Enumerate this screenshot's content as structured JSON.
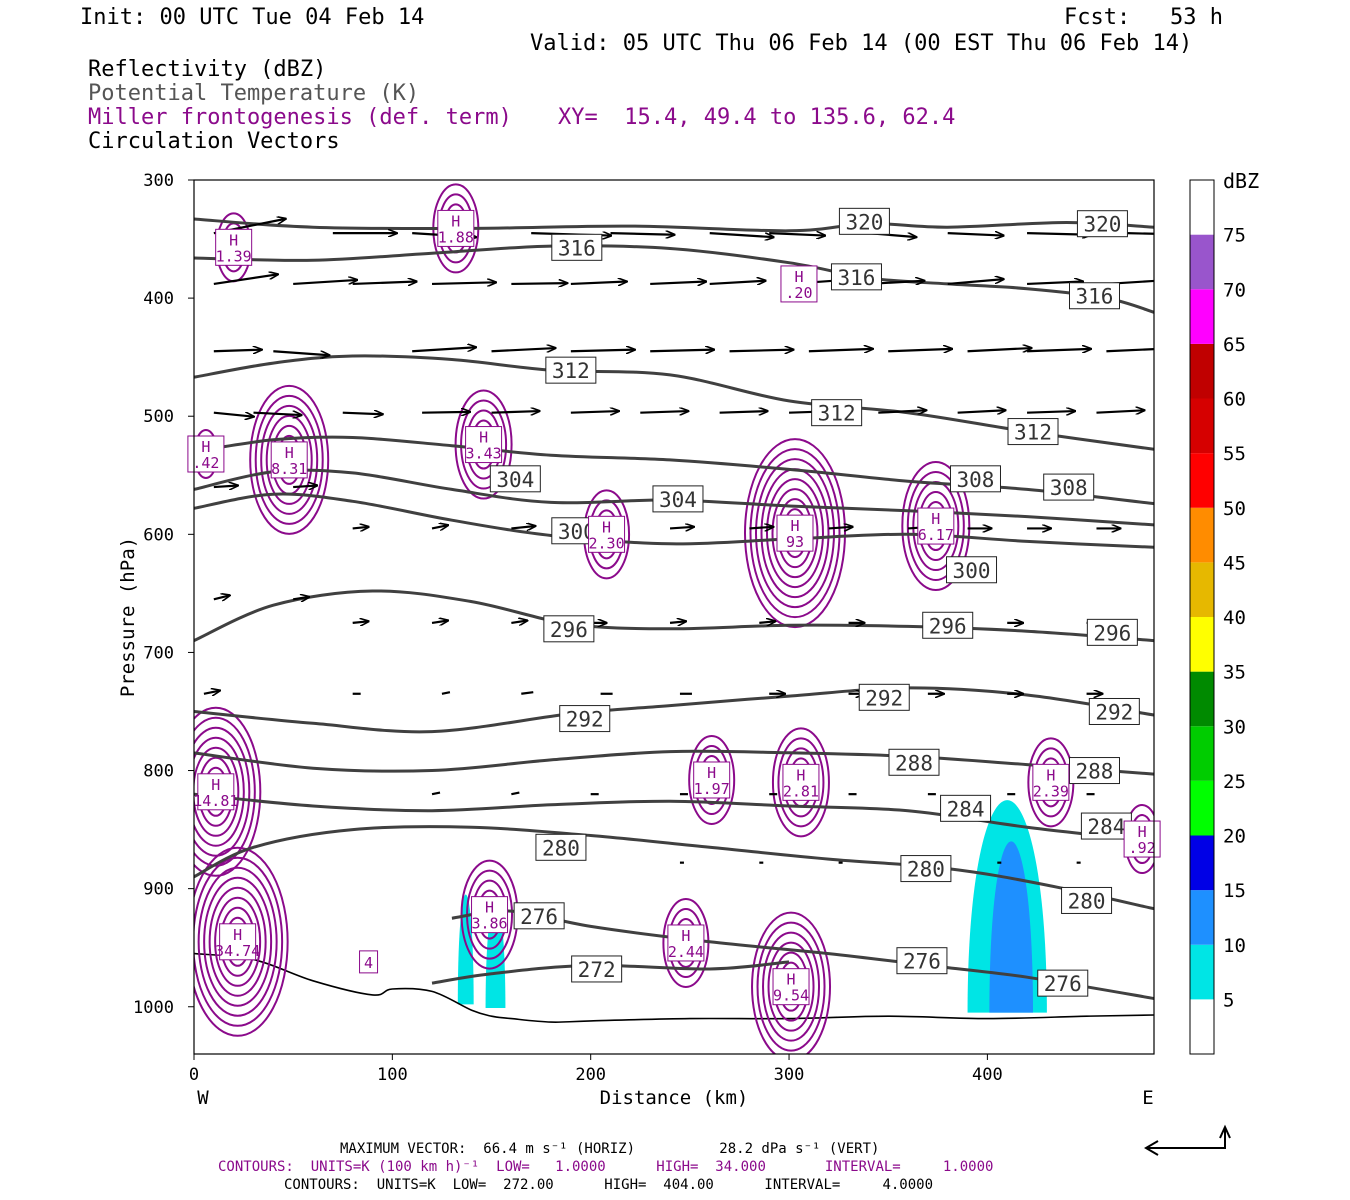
{
  "header": {
    "init": "Init: 00 UTC Tue 04 Feb 14",
    "fcst": "Fcst:   53 h",
    "valid": "Valid: 05 UTC Thu 06 Feb 14 (00 EST Thu 06 Feb 14)",
    "field1": "Reflectivity (dBZ)",
    "field2": "Potential Temperature (K)",
    "field3": "Miller frontogenesis (def. term)",
    "xy": "XY=  15.4, 49.4 to 135.6, 62.4",
    "field4": "Circulation Vectors"
  },
  "colors": {
    "theta": "#404040",
    "fronto": "#8b0a8b",
    "vector": "#000000"
  },
  "chart_data": {
    "type": "cross-section",
    "xlabel": "Distance (km)",
    "ylabel": "Pressure (hPa)",
    "xlim": [
      0,
      484
    ],
    "ylim": [
      1040,
      300
    ],
    "xticks": [
      0,
      100,
      200,
      300,
      400
    ],
    "yticks": [
      300,
      400,
      500,
      600,
      700,
      800,
      900,
      1000
    ],
    "x_end_labels": {
      "left": "W",
      "right": "E"
    },
    "colorbar": {
      "units": "dBZ",
      "levels": [
        5,
        10,
        15,
        20,
        25,
        30,
        35,
        40,
        45,
        50,
        55,
        60,
        65,
        70,
        75
      ],
      "colors": [
        "#ffffff",
        "#00e5e5",
        "#1e90ff",
        "#0000e6",
        "#00ff00",
        "#00cc00",
        "#008a00",
        "#ffff00",
        "#e6b800",
        "#ff8c00",
        "#ff0000",
        "#d60000",
        "#c00000",
        "#ff00ff",
        "#9955cc",
        "#ffffff"
      ]
    },
    "reflectivity_cells": [
      {
        "x_center": 137,
        "x_halfwidth": 4,
        "p_top": 905,
        "p_base": 998,
        "level_dbz": 5
      },
      {
        "x_center": 152,
        "x_halfwidth": 5,
        "p_top": 910,
        "p_base": 1001,
        "level_dbz": 5
      },
      {
        "x_center": 410,
        "x_halfwidth": 20,
        "p_top": 825,
        "p_base": 1005,
        "level_dbz": 5
      },
      {
        "x_center": 412,
        "x_halfwidth": 11,
        "p_top": 860,
        "p_base": 1005,
        "level_dbz": 10
      }
    ],
    "theta_contours": [
      {
        "label": "320",
        "x": [
          0,
          60,
          140,
          220,
          300,
          340,
          380,
          440,
          484
        ],
        "p": [
          333,
          340,
          341,
          339,
          343,
          337,
          340,
          336,
          340
        ],
        "labels": [
          {
            "x": 338,
            "p": 335
          },
          {
            "x": 458,
            "p": 337
          }
        ]
      },
      {
        "label": "316",
        "x": [
          0,
          60,
          120,
          180,
          240,
          300,
          340,
          380,
          420,
          460,
          484
        ],
        "p": [
          366,
          368,
          362,
          356,
          358,
          370,
          383,
          388,
          392,
          400,
          412
        ],
        "labels": [
          {
            "x": 193,
            "p": 357
          },
          {
            "x": 334,
            "p": 382
          },
          {
            "x": 454,
            "p": 398
          }
        ]
      },
      {
        "label": "312",
        "x": [
          0,
          40,
          80,
          130,
          180,
          240,
          300,
          360,
          420,
          484
        ],
        "p": [
          467,
          455,
          449,
          452,
          461,
          465,
          487,
          497,
          513,
          528
        ],
        "labels": [
          {
            "x": 190,
            "p": 461
          },
          {
            "x": 324,
            "p": 497
          },
          {
            "x": 423,
            "p": 513
          }
        ]
      },
      {
        "label": "308",
        "x": [
          0,
          40,
          80,
          130,
          180,
          240,
          300,
          360,
          420,
          484
        ],
        "p": [
          530,
          520,
          518,
          525,
          533,
          537,
          545,
          555,
          562,
          574
        ],
        "labels": [
          {
            "x": 394,
            "p": 553
          },
          {
            "x": 441,
            "p": 560
          }
        ]
      },
      {
        "label": "304",
        "x": [
          0,
          40,
          80,
          130,
          180,
          240,
          300,
          360,
          420,
          484
        ],
        "p": [
          562,
          547,
          548,
          562,
          573,
          571,
          576,
          580,
          585,
          592
        ],
        "labels": [
          {
            "x": 162,
            "p": 553
          },
          {
            "x": 244,
            "p": 570
          }
        ]
      },
      {
        "label": "300",
        "x": [
          0,
          40,
          80,
          130,
          180,
          240,
          300,
          360,
          420,
          484
        ],
        "p": [
          578,
          566,
          572,
          588,
          601,
          608,
          604,
          600,
          606,
          611
        ],
        "labels": [
          {
            "x": 193,
            "p": 597
          },
          {
            "x": 392,
            "p": 630
          }
        ]
      },
      {
        "label": "296",
        "x": [
          0,
          40,
          90,
          140,
          190,
          240,
          300,
          360,
          420,
          484
        ],
        "p": [
          690,
          660,
          648,
          657,
          676,
          680,
          677,
          678,
          682,
          690
        ],
        "labels": [
          {
            "x": 189,
            "p": 680
          },
          {
            "x": 380,
            "p": 677
          },
          {
            "x": 463,
            "p": 683
          }
        ]
      },
      {
        "label": "292",
        "x": [
          0,
          60,
          120,
          190,
          240,
          300,
          360,
          420,
          484
        ],
        "p": [
          750,
          760,
          767,
          752,
          745,
          737,
          730,
          736,
          753
        ],
        "labels": [
          {
            "x": 197,
            "p": 756
          },
          {
            "x": 348,
            "p": 738
          },
          {
            "x": 464,
            "p": 750
          }
        ]
      },
      {
        "label": "288",
        "x": [
          0,
          60,
          120,
          180,
          240,
          300,
          360,
          420,
          484
        ],
        "p": [
          785,
          798,
          800,
          791,
          784,
          785,
          788,
          795,
          803
        ],
        "labels": [
          {
            "x": 363,
            "p": 793
          },
          {
            "x": 454,
            "p": 800
          }
        ]
      },
      {
        "label": "284",
        "x": [
          0,
          60,
          120,
          180,
          240,
          300,
          360,
          420,
          484
        ],
        "p": [
          820,
          830,
          834,
          829,
          826,
          830,
          834,
          848,
          860
        ],
        "labels": [
          {
            "x": 389,
            "p": 832
          },
          {
            "x": 460,
            "p": 847
          }
        ]
      },
      {
        "label": "280",
        "x": [
          0,
          30,
          80,
          140,
          200,
          260,
          320,
          380,
          430,
          484
        ],
        "p": [
          890,
          865,
          850,
          848,
          855,
          865,
          875,
          883,
          897,
          917
        ],
        "labels": [
          {
            "x": 185,
            "p": 865
          },
          {
            "x": 369,
            "p": 883
          },
          {
            "x": 450,
            "p": 910
          }
        ]
      },
      {
        "label": "276",
        "x": [
          130,
          160,
          200,
          260,
          320,
          370,
          420,
          484
        ],
        "p": [
          925,
          919,
          932,
          945,
          955,
          965,
          975,
          993
        ],
        "labels": [
          {
            "x": 174,
            "p": 923
          },
          {
            "x": 367,
            "p": 961
          },
          {
            "x": 438,
            "p": 980
          }
        ]
      },
      {
        "label": "272",
        "x": [
          120,
          150,
          200,
          260,
          300
        ],
        "p": [
          980,
          972,
          965,
          968,
          962
        ],
        "labels": [
          {
            "x": 203,
            "p": 968
          }
        ]
      }
    ],
    "terrain": {
      "x": [
        0,
        30,
        60,
        90,
        100,
        120,
        140,
        150,
        160,
        180,
        200,
        250,
        300,
        350,
        400,
        450,
        484
      ],
      "p": [
        955,
        960,
        978,
        990,
        985,
        987,
        1003,
        1008,
        1010,
        1013,
        1012,
        1010,
        1010,
        1008,
        1010,
        1008,
        1007
      ]
    },
    "fronto_maxima": [
      {
        "label": "1.39",
        "x": 20,
        "p": 357
      },
      {
        "label": "1.88",
        "x": 132,
        "p": 341
      },
      {
        "label": ".20",
        "x": 305,
        "p": 388
      },
      {
        "label": ".42",
        "x": 6,
        "p": 532
      },
      {
        "label": "8.31",
        "x": 48,
        "p": 537
      },
      {
        "label": "3.43",
        "x": 146,
        "p": 524
      },
      {
        "label": "2.30",
        "x": 208,
        "p": 600
      },
      {
        "label": "93",
        "x": 303,
        "p": 599
      },
      {
        "label": "6.17",
        "x": 374,
        "p": 593
      },
      {
        "label": "14.81",
        "x": 11,
        "p": 818
      },
      {
        "label": "1.97",
        "x": 261,
        "p": 808
      },
      {
        "label": "2.81",
        "x": 306,
        "p": 810
      },
      {
        "label": "2.39",
        "x": 432,
        "p": 810
      },
      {
        "label": ".92",
        "x": 478,
        "p": 858
      },
      {
        "label": "3.86",
        "x": 149,
        "p": 922
      },
      {
        "label": "2.44",
        "x": 248,
        "p": 946
      },
      {
        "label": "9.54",
        "x": 301,
        "p": 983
      },
      {
        "label": "34.74",
        "x": 22,
        "p": 945
      }
    ],
    "fronto_extra_labels": [
      {
        "label": "4",
        "x": 88,
        "p": 962
      }
    ],
    "vector_rows": [
      {
        "p": 345,
        "xs": [
          10,
          70,
          110,
          170,
          210,
          260,
          290,
          340,
          380,
          420,
          470
        ],
        "u": [
          0.9,
          0.8,
          0.8,
          1.0,
          0.8,
          0.8,
          0.7,
          0.6,
          0.7,
          0.8,
          0.9
        ],
        "w": [
          0.18,
          0.0,
          -0.05,
          -0.03,
          -0.02,
          -0.05,
          -0.03,
          -0.05,
          -0.03,
          -0.02,
          -0.02
        ]
      },
      {
        "p": 388,
        "xs": [
          10,
          50,
          80,
          120,
          160,
          190,
          230,
          260,
          300,
          340,
          380,
          420,
          460
        ],
        "u": [
          0.8,
          0.8,
          0.8,
          0.8,
          0.7,
          0.7,
          0.7,
          0.7,
          0.7,
          0.7,
          0.7,
          0.7,
          0.8
        ],
        "w": [
          0.12,
          0.05,
          0.03,
          0.02,
          0.01,
          0.03,
          0.03,
          0.04,
          0.05,
          0.04,
          0.06,
          0.03,
          0.05
        ]
      },
      {
        "p": 445,
        "xs": [
          10,
          40,
          110,
          150,
          190,
          230,
          270,
          310,
          350,
          390,
          420,
          460
        ],
        "u": [
          0.6,
          0.7,
          0.8,
          0.8,
          0.8,
          0.8,
          0.8,
          0.8,
          0.8,
          0.8,
          0.8,
          0.9
        ],
        "w": [
          0.02,
          -0.05,
          0.05,
          0.04,
          0.02,
          0.02,
          0.02,
          0.03,
          0.03,
          0.04,
          0.03,
          0.04
        ]
      },
      {
        "p": 497,
        "xs": [
          10,
          30,
          75,
          115,
          150,
          190,
          225,
          265,
          300,
          345,
          385,
          420,
          455
        ],
        "u": [
          0.5,
          0.6,
          0.5,
          0.6,
          0.6,
          0.6,
          0.6,
          0.6,
          0.6,
          0.6,
          0.6,
          0.6,
          0.6
        ],
        "w": [
          -0.05,
          -0.03,
          -0.02,
          0.01,
          0.02,
          0.02,
          0.02,
          0.02,
          0.02,
          0.03,
          0.03,
          0.02,
          0.03
        ]
      },
      {
        "p": 560,
        "xs": [
          10,
          50
        ],
        "u": [
          0.3,
          0.3
        ],
        "w": [
          0.02,
          0.02
        ]
      },
      {
        "p": 595,
        "xs": [
          80,
          120,
          160,
          200,
          240,
          280,
          320,
          360,
          390,
          420,
          455
        ],
        "u": [
          0.2,
          0.2,
          0.3,
          0.3,
          0.3,
          0.3,
          0.3,
          0.3,
          0.3,
          0.3,
          0.3
        ],
        "w": [
          0.02,
          0.04,
          0.03,
          0.01,
          0.02,
          0.02,
          0.02,
          0.02,
          0.0,
          0.0,
          0.0
        ]
      },
      {
        "p": 655,
        "xs": [
          10,
          50
        ],
        "u": [
          0.2,
          0.2
        ],
        "w": [
          0.05,
          0.03
        ]
      },
      {
        "p": 675,
        "xs": [
          80,
          120,
          160,
          200,
          240,
          285,
          330,
          370,
          410,
          450
        ],
        "u": [
          0.2,
          0.2,
          0.2,
          0.2,
          0.2,
          0.2,
          0.2,
          0.2,
          0.2,
          0.2
        ],
        "w": [
          0.02,
          0.03,
          0.03,
          0.0,
          0.02,
          0.02,
          0.0,
          0.0,
          0.0,
          0.0
        ]
      },
      {
        "p": 735,
        "xs": [
          5,
          80,
          125,
          165,
          205,
          245,
          290,
          330,
          370,
          410,
          450
        ],
        "u": [
          0.2,
          0.1,
          0.1,
          0.15,
          0.15,
          0.15,
          0.2,
          0.2,
          0.2,
          0.2,
          0.2
        ],
        "w": [
          0.04,
          0.0,
          0.02,
          0.02,
          0.0,
          0.0,
          0.0,
          0.0,
          0.0,
          0.0,
          0.0
        ]
      },
      {
        "p": 820,
        "xs": [
          120,
          160,
          200,
          245,
          290,
          330,
          370,
          410,
          450
        ],
        "u": [
          0.1,
          0.1,
          0.1,
          0.1,
          0.1,
          0.1,
          0.1,
          0.1,
          0.1
        ],
        "w": [
          0.02,
          0.02,
          0.0,
          0.0,
          0.0,
          0.0,
          0.0,
          0.0,
          0.0
        ]
      },
      {
        "p": 878,
        "xs": [
          245,
          285,
          325,
          365,
          405,
          445
        ],
        "u": [
          0.05,
          0.05,
          0.05,
          0.05,
          0.05,
          0.05
        ],
        "w": [
          0.0,
          0.0,
          0.0,
          0.0,
          0.0,
          0.0
        ]
      }
    ]
  },
  "footer": {
    "line1": "MAXIMUM VECTOR:  66.4 m s⁻¹ (HORIZ)          28.2 dPa s⁻¹ (VERT)",
    "line2": "CONTOURS:  UNITS=K (100 km h)⁻¹  LOW=   1.0000      HIGH=  34.000       INTERVAL=     1.0000",
    "line3": "CONTOURS:  UNITS=K  LOW=  272.00      HIGH=  404.00      INTERVAL=     4.0000"
  }
}
